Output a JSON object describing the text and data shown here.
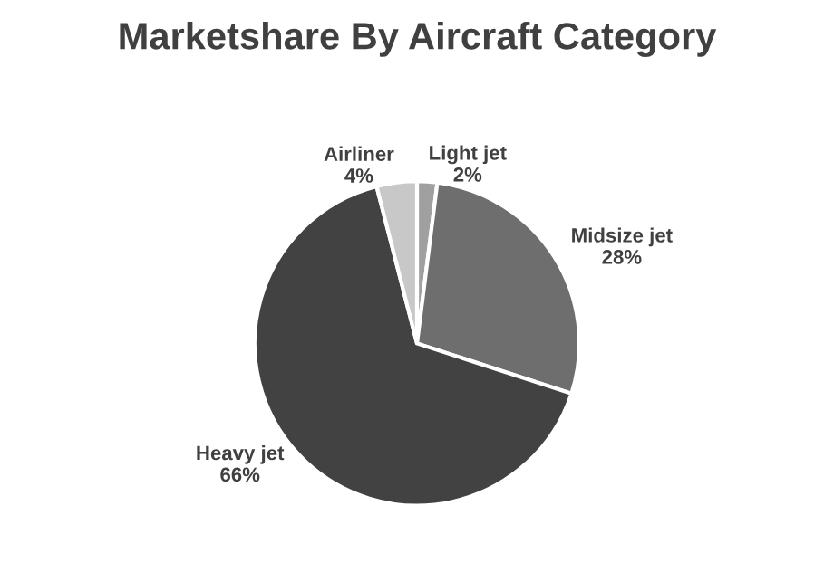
{
  "chart_data": {
    "type": "pie",
    "title": "Marketshare By Aircraft Category",
    "categories": [
      "Light jet",
      "Midsize jet",
      "Heavy jet",
      "Airliner"
    ],
    "values": [
      2,
      28,
      66,
      4
    ],
    "value_labels": [
      "2%",
      "28%",
      "66%",
      "4%"
    ],
    "colors": [
      "#a0a0a0",
      "#6e6e6e",
      "#424242",
      "#c8c8c8"
    ],
    "legend": false
  }
}
